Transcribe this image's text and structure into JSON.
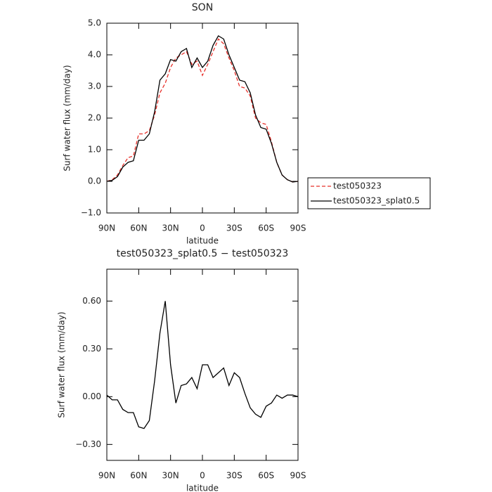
{
  "chart_data": [
    {
      "type": "line",
      "title": "SON",
      "xlabel": "latitude",
      "ylabel": "Surf water flux (mm/day)",
      "x": [
        90,
        85,
        80,
        75,
        70,
        65,
        60,
        55,
        50,
        45,
        40,
        35,
        30,
        25,
        20,
        15,
        10,
        5,
        0,
        -5,
        -10,
        -15,
        -20,
        -25,
        -30,
        -35,
        -40,
        -45,
        -50,
        -55,
        -60,
        -65,
        -70,
        -75,
        -80,
        -85,
        -90
      ],
      "series": [
        {
          "name": "test050323",
          "color": "#e8302a",
          "line_style": "dashed",
          "values": [
            0.0,
            0.05,
            0.2,
            0.5,
            0.75,
            0.8,
            1.5,
            1.5,
            1.6,
            2.1,
            2.8,
            3.1,
            3.6,
            3.9,
            4.0,
            4.1,
            3.7,
            3.8,
            3.35,
            3.7,
            4.1,
            4.5,
            4.35,
            3.9,
            3.5,
            3.0,
            2.95,
            2.7,
            2.0,
            1.85,
            1.8,
            1.25,
            0.6,
            0.2,
            0.05,
            -0.02,
            0.0
          ]
        },
        {
          "name": "test050323_splat0.5",
          "color": "#000000",
          "line_style": "solid",
          "values": [
            0.0,
            0.03,
            0.15,
            0.45,
            0.6,
            0.65,
            1.3,
            1.3,
            1.5,
            2.2,
            3.2,
            3.4,
            3.85,
            3.8,
            4.1,
            4.2,
            3.6,
            3.9,
            3.6,
            3.8,
            4.3,
            4.6,
            4.5,
            4.0,
            3.6,
            3.2,
            3.15,
            2.8,
            2.1,
            1.7,
            1.65,
            1.2,
            0.6,
            0.2,
            0.05,
            -0.02,
            0.0
          ]
        }
      ],
      "xlim": [
        90,
        -90
      ],
      "xticks": [
        {
          "value": 90,
          "label": "90N"
        },
        {
          "value": 60,
          "label": "60N"
        },
        {
          "value": 30,
          "label": "30N"
        },
        0,
        {
          "value": -30,
          "label": "30S"
        },
        {
          "value": -60,
          "label": "60S"
        },
        {
          "value": -90,
          "label": "90S"
        }
      ],
      "ylim": [
        -1,
        5
      ],
      "yticks": [
        {
          "value": -1,
          "label": "−1.0"
        },
        {
          "value": 0,
          "label": "0.0"
        },
        {
          "value": 1,
          "label": "1.0"
        },
        {
          "value": 2,
          "label": "2.0"
        },
        {
          "value": 3,
          "label": "3.0"
        },
        {
          "value": 4,
          "label": "4.0"
        },
        {
          "value": 5,
          "label": "5.0"
        }
      ],
      "legend": "right"
    },
    {
      "type": "line",
      "title": "test050323_splat0.5 − test050323",
      "xlabel": "latitude",
      "ylabel": "Surf water flux (mm/day)",
      "x": [
        90,
        85,
        80,
        75,
        70,
        65,
        60,
        55,
        50,
        45,
        40,
        35,
        30,
        25,
        20,
        15,
        10,
        5,
        0,
        -5,
        -10,
        -15,
        -20,
        -25,
        -30,
        -35,
        -40,
        -45,
        -50,
        -55,
        -60,
        -65,
        -70,
        -75,
        -80,
        -85,
        -90
      ],
      "series": [
        {
          "color": "#000000",
          "line_style": "solid",
          "values": [
            0.01,
            -0.02,
            -0.02,
            -0.08,
            -0.1,
            -0.1,
            -0.19,
            -0.2,
            -0.15,
            0.1,
            0.4,
            0.6,
            0.2,
            -0.04,
            0.07,
            0.08,
            0.12,
            0.05,
            0.2,
            0.2,
            0.12,
            0.15,
            0.18,
            0.07,
            0.15,
            0.12,
            0.02,
            -0.07,
            -0.11,
            -0.13,
            -0.06,
            -0.04,
            0.01,
            -0.01,
            0.01,
            0.01,
            0.0
          ]
        }
      ],
      "xlim": [
        90,
        -90
      ],
      "xticks": [
        {
          "value": 90,
          "label": "90N"
        },
        {
          "value": 60,
          "label": "60N"
        },
        {
          "value": 30,
          "label": "30N"
        },
        0,
        {
          "value": -30,
          "label": "30S"
        },
        {
          "value": -60,
          "label": "60S"
        },
        {
          "value": -90,
          "label": "90S"
        }
      ],
      "ylim": [
        -0.4,
        0.8
      ],
      "yticks": [
        {
          "value": -0.3,
          "label": "−0.30"
        },
        {
          "value": 0,
          "label": "0.00"
        },
        {
          "value": 0.3,
          "label": "0.30"
        },
        {
          "value": 0.6,
          "label": "0.60"
        }
      ]
    }
  ]
}
